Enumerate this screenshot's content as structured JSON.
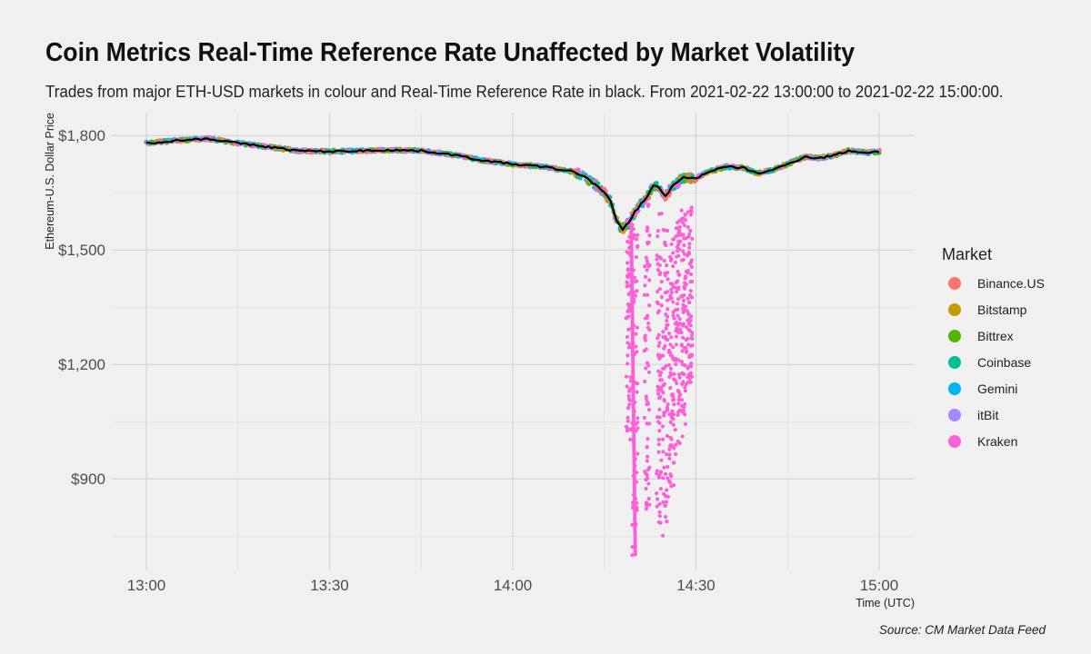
{
  "title": "Coin Metrics Real-Time Reference Rate Unaffected by Market Volatility",
  "subtitle": "Trades from major ETH-USD markets in colour and Real-Time Reference Rate in black. From 2021-02-22 13:00:00 to 2021-02-22 15:00:00.",
  "caption": "Source: CM Market Data Feed",
  "chart_data": {
    "type": "scatter",
    "title": "Coin Metrics Real-Time Reference Rate Unaffected by Market Volatility",
    "xlabel": "Time (UTC)",
    "ylabel": "Ethereum-U.S. Dollar Price",
    "x_ticks": [
      "13:00",
      "13:30",
      "14:00",
      "14:30",
      "15:00"
    ],
    "y_ticks": [
      "$900",
      "$1,200",
      "$1,500",
      "$1,800"
    ],
    "y_tick_values": [
      900,
      1200,
      1500,
      1800
    ],
    "xlim": [
      "13:00",
      "15:00"
    ],
    "ylim": [
      660,
      1860
    ],
    "grid": true,
    "legend_title": "Market",
    "legend_position": "right",
    "reference_rate": {
      "color": "#000000",
      "x": [
        "13:00",
        "13:05",
        "13:10",
        "13:15",
        "13:20",
        "13:25",
        "13:30",
        "13:35",
        "13:40",
        "13:45",
        "13:50",
        "13:55",
        "14:00",
        "14:05",
        "14:10",
        "14:12",
        "14:14",
        "14:15",
        "14:16",
        "14:17",
        "14:18",
        "14:19",
        "14:20",
        "14:22",
        "14:23",
        "14:24",
        "14:25",
        "14:26",
        "14:28",
        "14:30",
        "14:32",
        "14:35",
        "14:38",
        "14:40",
        "14:43",
        "14:45",
        "14:48",
        "14:50",
        "14:53",
        "14:55",
        "14:58",
        "15:00"
      ],
      "y": [
        1780,
        1787,
        1792,
        1780,
        1770,
        1760,
        1758,
        1760,
        1762,
        1760,
        1750,
        1735,
        1725,
        1718,
        1705,
        1690,
        1665,
        1650,
        1628,
        1575,
        1555,
        1572,
        1600,
        1640,
        1670,
        1662,
        1640,
        1665,
        1690,
        1688,
        1705,
        1718,
        1715,
        1700,
        1712,
        1725,
        1745,
        1740,
        1750,
        1760,
        1755,
        1758
      ]
    },
    "series": [
      {
        "name": "Binance.US",
        "color": "#F8766D"
      },
      {
        "name": "Bitstamp",
        "color": "#C49A00"
      },
      {
        "name": "Bittrex",
        "color": "#53B400"
      },
      {
        "name": "Coinbase",
        "color": "#00C094"
      },
      {
        "name": "Gemini",
        "color": "#00B6EB"
      },
      {
        "name": "itBit",
        "color": "#A58AFF"
      },
      {
        "name": "Kraken",
        "color": "#FB61D7"
      }
    ],
    "kraken_outliers": {
      "min_price": 700,
      "ranges": [
        {
          "time": "14:19",
          "low": 1000,
          "high": 1580
        },
        {
          "time": "14:20",
          "low": 700,
          "high": 1600
        },
        {
          "time": "14:22",
          "low": 820,
          "high": 1650
        },
        {
          "time": "14:24",
          "low": 780,
          "high": 1610
        },
        {
          "time": "14:25",
          "low": 750,
          "high": 1560
        },
        {
          "time": "14:26",
          "low": 860,
          "high": 1540
        },
        {
          "time": "14:27",
          "low": 950,
          "high": 1590
        },
        {
          "time": "14:28",
          "low": 1000,
          "high": 1610
        },
        {
          "time": "14:29",
          "low": 1150,
          "high": 1620
        }
      ]
    }
  }
}
